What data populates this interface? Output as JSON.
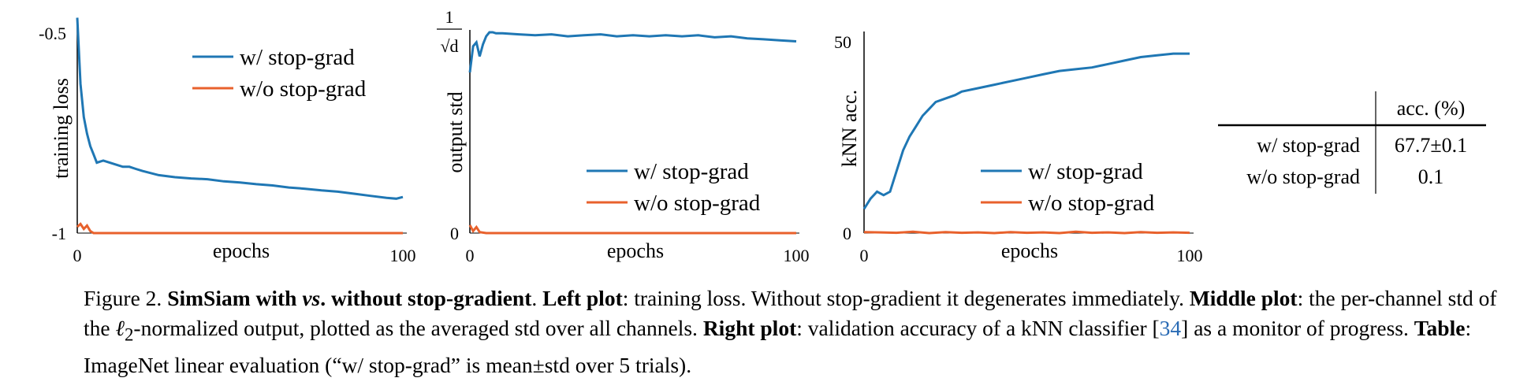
{
  "colors": {
    "with": "#1f77b4",
    "without": "#e8612c"
  },
  "plots": [
    {
      "id": "left",
      "ylabel": "training loss",
      "xlabel": "epochs",
      "x_ticks": [
        "0",
        "100"
      ],
      "y_ticks": [
        "-0.5",
        "-1"
      ],
      "legend": [
        "w/ stop-grad",
        "w/o stop-grad"
      ]
    },
    {
      "id": "middle",
      "ylabel": "output std",
      "xlabel": "epochs",
      "x_ticks": [
        "0",
        "100"
      ],
      "y_ticks": [
        "1/√d",
        "0"
      ],
      "legend": [
        "w/ stop-grad",
        "w/o stop-grad"
      ]
    },
    {
      "id": "right",
      "ylabel": "kNN acc.",
      "xlabel": "epochs",
      "x_ticks": [
        "0",
        "100"
      ],
      "y_ticks": [
        "50",
        "0"
      ],
      "legend": [
        "w/ stop-grad",
        "w/o stop-grad"
      ]
    }
  ],
  "chart_data": [
    {
      "type": "line",
      "ylabel": "training loss",
      "xlabel": "epochs",
      "xlim": [
        0,
        100
      ],
      "ylim": [
        -1,
        -0.5
      ],
      "legend_position": "top-right",
      "series": [
        {
          "name": "w/ stop-grad",
          "x": [
            0,
            1,
            2,
            3,
            4,
            5,
            6,
            8,
            10,
            12,
            14,
            16,
            18,
            20,
            25,
            30,
            35,
            40,
            45,
            50,
            55,
            60,
            65,
            70,
            75,
            80,
            85,
            90,
            95,
            98,
            100
          ],
          "y": [
            -0.48,
            -0.64,
            -0.72,
            -0.76,
            -0.79,
            -0.81,
            -0.83,
            -0.825,
            -0.83,
            -0.835,
            -0.84,
            -0.84,
            -0.845,
            -0.85,
            -0.86,
            -0.865,
            -0.868,
            -0.87,
            -0.875,
            -0.878,
            -0.882,
            -0.885,
            -0.89,
            -0.893,
            -0.897,
            -0.9,
            -0.905,
            -0.91,
            -0.915,
            -0.917,
            -0.913
          ]
        },
        {
          "name": "w/o stop-grad",
          "x": [
            0,
            1,
            2,
            3,
            4,
            5,
            10,
            20,
            40,
            60,
            80,
            100
          ],
          "y": [
            -0.985,
            -0.978,
            -0.99,
            -0.982,
            -0.995,
            -1.0,
            -1.0,
            -1.0,
            -1.0,
            -1.0,
            -1.0,
            -1.0
          ]
        }
      ]
    },
    {
      "type": "line",
      "ylabel": "output std",
      "xlabel": "epochs",
      "xlim": [
        0,
        100
      ],
      "ylim": [
        0,
        1.0
      ],
      "legend_position": "bottom-right",
      "series": [
        {
          "name": "w/ stop-grad",
          "x": [
            0,
            1,
            2,
            3,
            4,
            5,
            6,
            7,
            8,
            10,
            15,
            20,
            25,
            30,
            35,
            40,
            45,
            50,
            55,
            60,
            65,
            70,
            75,
            80,
            85,
            90,
            95,
            100
          ],
          "y": [
            0.8,
            0.93,
            0.95,
            0.88,
            0.94,
            0.98,
            1.0,
            1.0,
            0.995,
            0.995,
            0.99,
            0.985,
            0.99,
            0.98,
            0.985,
            0.99,
            0.98,
            0.985,
            0.98,
            0.985,
            0.98,
            0.985,
            0.975,
            0.98,
            0.97,
            0.965,
            0.96,
            0.955
          ]
        },
        {
          "name": "w/o stop-grad",
          "x": [
            0,
            1,
            2,
            3,
            5,
            10,
            20,
            40,
            60,
            80,
            100
          ],
          "y": [
            0.04,
            0.01,
            0.03,
            0.005,
            0.0,
            0.0,
            0.0,
            0.0,
            0.0,
            0.0,
            0.0
          ]
        }
      ]
    },
    {
      "type": "line",
      "ylabel": "kNN acc.",
      "xlabel": "epochs",
      "xlim": [
        0,
        100
      ],
      "ylim": [
        0,
        55
      ],
      "legend_position": "bottom-right",
      "series": [
        {
          "name": "w/ stop-grad",
          "x": [
            0,
            2,
            4,
            6,
            8,
            10,
            12,
            14,
            16,
            18,
            20,
            22,
            25,
            28,
            30,
            35,
            40,
            45,
            50,
            55,
            60,
            65,
            70,
            75,
            80,
            85,
            90,
            95,
            100
          ],
          "y": [
            7,
            10,
            12,
            11,
            12,
            18,
            24,
            28,
            31,
            34,
            36,
            38,
            39,
            40,
            41,
            42,
            43,
            44,
            45,
            46,
            47,
            47.5,
            48,
            49,
            50,
            51,
            51.5,
            52,
            52
          ]
        },
        {
          "name": "w/o stop-grad",
          "x": [
            0,
            5,
            10,
            15,
            20,
            25,
            30,
            35,
            40,
            45,
            50,
            55,
            60,
            65,
            70,
            75,
            80,
            85,
            90,
            95,
            100
          ],
          "y": [
            0.3,
            0.2,
            0.1,
            0.4,
            0.0,
            0.3,
            0.1,
            0.2,
            0.0,
            0.3,
            0.1,
            0.2,
            0.0,
            0.4,
            0.1,
            0.2,
            0.0,
            0.3,
            0.1,
            0.2,
            0.1
          ]
        }
      ]
    },
    {
      "type": "table",
      "header": [
        "",
        "acc. (%)"
      ],
      "rows": [
        [
          "w/ stop-grad",
          "67.7±0.1"
        ],
        [
          "w/o stop-grad",
          "0.1"
        ]
      ]
    }
  ],
  "caption": {
    "label": "Figure 2.",
    "title": "SimSiam with",
    "vs": "vs",
    "title_end": ". without stop-gradient",
    "left_label": "Left plot",
    "left_text": ": training loss. Without stop-gradient it degenerates immediately.",
    "middle_label": "Middle plot",
    "middle_text_1": ": the per-channel std of the ",
    "ell": "ℓ",
    "ell_sub": "2",
    "middle_text_2": "-normalized output, plotted as the averaged std over all channels.",
    "right_label": "Right plot",
    "right_text_1": ": validation accuracy of a kNN classifier [",
    "ref": "34",
    "right_text_2": "] as a monitor of progress.",
    "table_label": "Table",
    "table_text": ": ImageNet linear evaluation (“w/ stop-grad” is mean±std over 5 trials)."
  }
}
